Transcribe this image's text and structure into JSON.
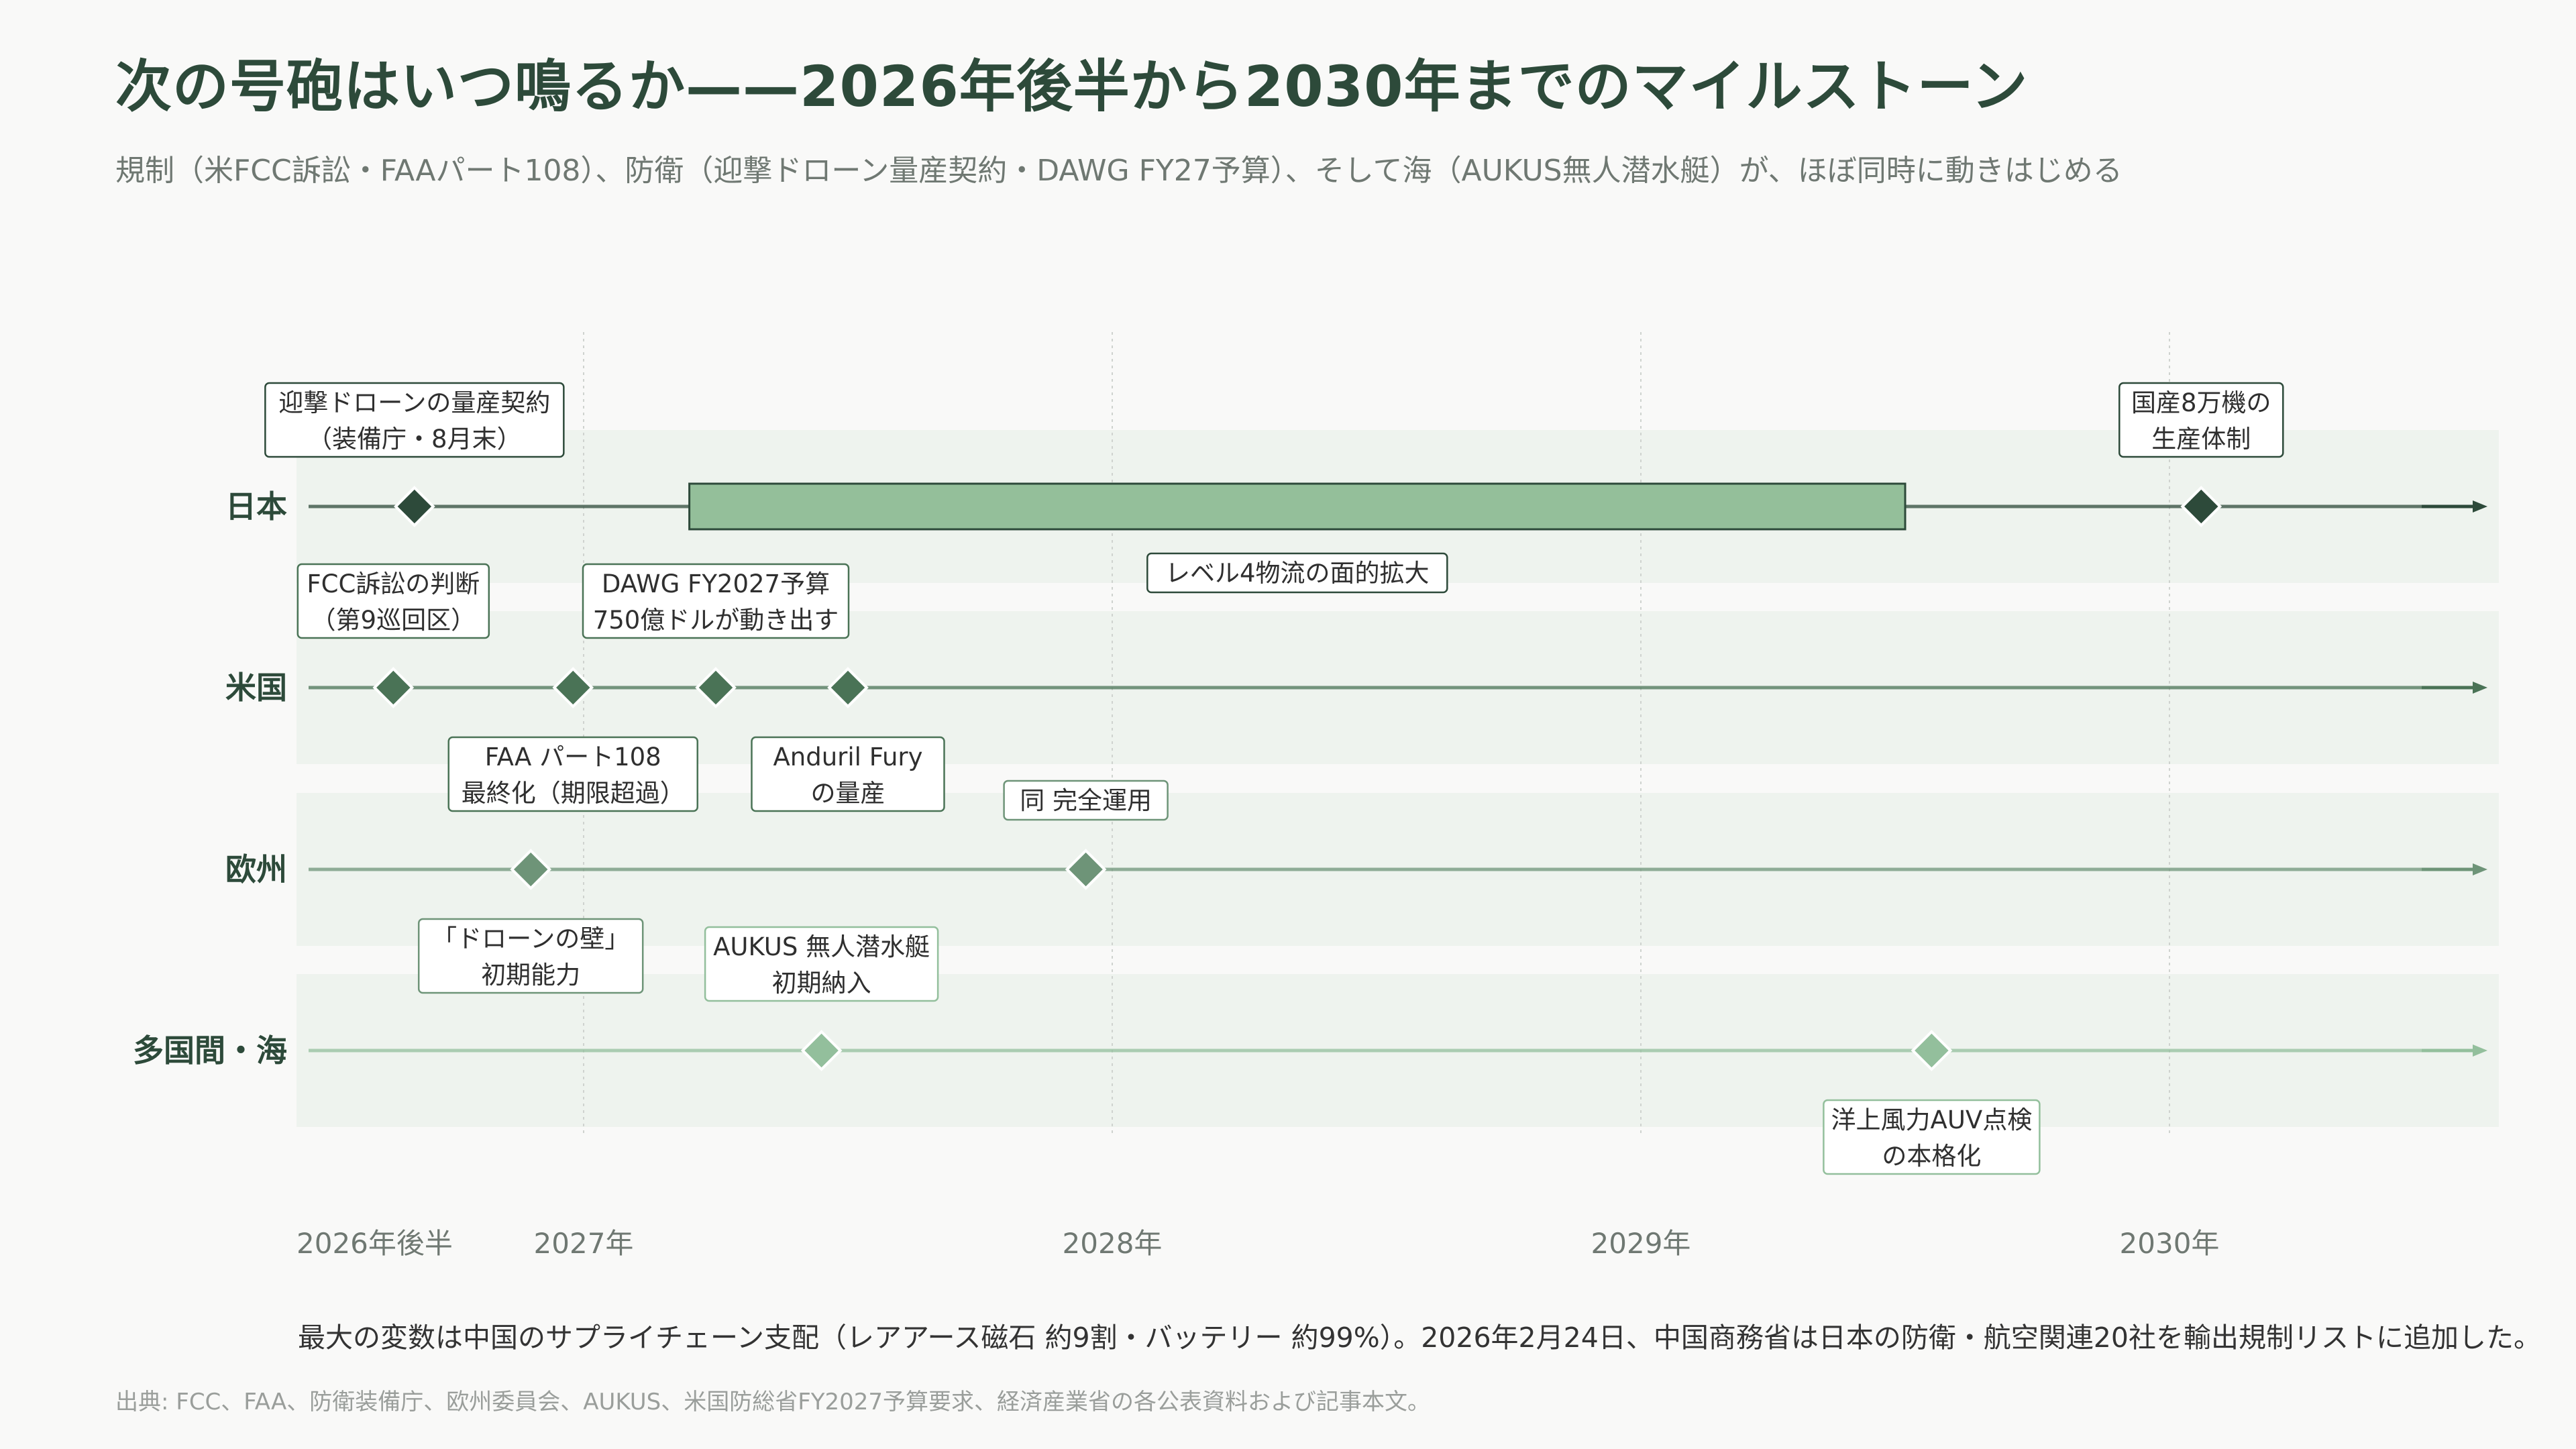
{
  "header": {
    "title": "次の号砲はいつ鳴るか——2026年後半から2030年までのマイルストーン",
    "subtitle": "規制（米FCC訴訟・FAAパート108）、防衛（迎撃ドローン量産契約・DAWG FY27予算）、そして海（AUKUS無人潜水艇）が、ほぼ同時に動きはじめる"
  },
  "chart_data": {
    "type": "timeline",
    "title": "次の号砲はいつ鳴るか——2026年後半から2030年までのマイルストーン",
    "x_range": [
      2026.5,
      2030.62
    ],
    "x_ticks": [
      {
        "value": 2026.5,
        "label": "2026年後半"
      },
      {
        "value": 2027.0,
        "label": "2027年"
      },
      {
        "value": 2028.0,
        "label": "2028年"
      },
      {
        "value": 2029.0,
        "label": "2029年"
      },
      {
        "value": 2030.0,
        "label": "2030年"
      }
    ],
    "grid": true,
    "rows": [
      {
        "label": "日本",
        "color": "#2d4a3a"
      },
      {
        "label": "米国",
        "color": "#4a7356"
      },
      {
        "label": "欧州",
        "color": "#6e9478"
      },
      {
        "label": "多国間・海",
        "color": "#93bf9c"
      }
    ],
    "milestones": [
      {
        "row": 0,
        "date": 2026.68,
        "label": [
          "迎撃ドローンの量産契約",
          "（装備庁・8月末）"
        ],
        "placement": "above"
      },
      {
        "row": 0,
        "date": 2030.06,
        "label": [
          "国産8万機の",
          "生産体制"
        ],
        "placement": "above"
      },
      {
        "row": 1,
        "date": 2026.64,
        "label": [
          "FCC訴訟の判断",
          "（第9巡回区）"
        ],
        "placement": "above"
      },
      {
        "row": 1,
        "date": 2026.98,
        "label": [
          "FAA パート108",
          "最終化（期限超過）"
        ],
        "placement": "below"
      },
      {
        "row": 1,
        "date": 2027.25,
        "label": [
          "DAWG FY2027予算",
          "750億ドルが動き出す"
        ],
        "placement": "above"
      },
      {
        "row": 1,
        "date": 2027.5,
        "label": [
          "Anduril Fury",
          "の量産"
        ],
        "placement": "below"
      },
      {
        "row": 2,
        "date": 2026.9,
        "label": [
          "「ドローンの壁」",
          "初期能力"
        ],
        "placement": "below"
      },
      {
        "row": 2,
        "date": 2027.95,
        "label": [
          "同 完全運用"
        ],
        "placement": "above"
      },
      {
        "row": 3,
        "date": 2027.45,
        "label": [
          "AUKUS 無人潜水艇",
          "初期納入"
        ],
        "placement": "above"
      },
      {
        "row": 3,
        "date": 2029.55,
        "label": [
          "洋上風力AUV点検",
          "の本格化"
        ],
        "placement": "below"
      }
    ],
    "ranges": [
      {
        "row": 0,
        "start": 2027.2,
        "end": 2029.5,
        "label": "レベル4物流の面的拡大",
        "color": "#94bf9a",
        "placement": "below"
      }
    ]
  },
  "footer": {
    "note": "最大の変数は中国のサプライチェーン支配（レアアース磁石 約9割・バッテリー 約99%）。2026年2月24日、中国商務省は日本の防衛・航空関連20社を輸出規制リストに追加した。",
    "source": "出典: FCC、FAA、防衛装備庁、欧州委員会、AUKUS、米国防総省FY2027予算要求、経済産業省の各公表資料および記事本文。"
  }
}
